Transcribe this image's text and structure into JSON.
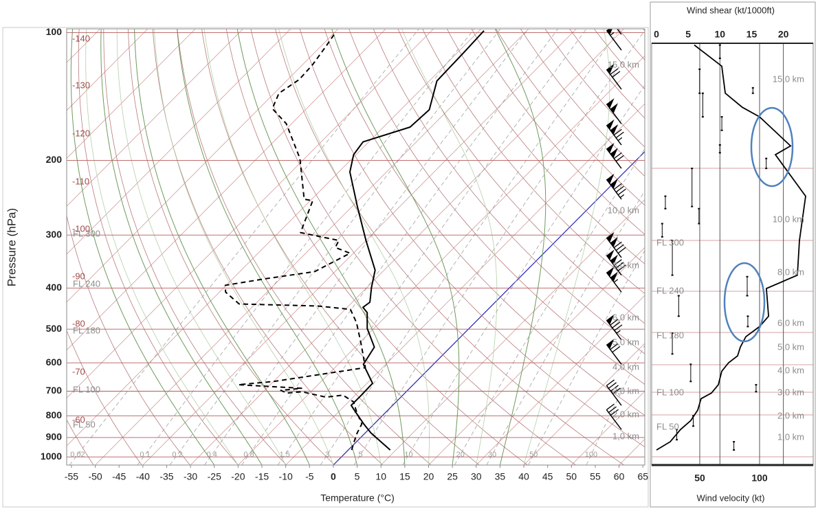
{
  "chart_data": [
    {
      "type": "skewt",
      "y_label": "Pressure (hPa)",
      "x_label": "Temperature (°C)",
      "log_y": true,
      "ylim": [
        1045,
        98
      ],
      "yticks": [
        100,
        200,
        300,
        400,
        500,
        600,
        700,
        800,
        900,
        1000
      ],
      "xlim": [
        -56,
        65.4
      ],
      "xticks": [
        -55,
        -50,
        -45,
        -40,
        -35,
        -30,
        -25,
        -20,
        -15,
        -10,
        -5,
        0,
        5,
        10,
        15,
        20,
        25,
        30,
        35,
        40,
        45,
        50,
        55,
        60,
        65
      ],
      "zero_isotherm_color": "#2424b8",
      "isotherm_labels": [
        "-140",
        "-130",
        "-120",
        "-110",
        "-100",
        "-90",
        "-80",
        "-70",
        "-60"
      ],
      "fl_labels": [
        "FL 300",
        "FL 240",
        "FL 180",
        "FL 100",
        "FL 50"
      ],
      "km_labels": [
        "15,0 km",
        "10,0 km",
        "8,0 km",
        "6,0 km",
        "5,0 km",
        "4,0 km",
        "3,0 km",
        "2,0 km",
        "1,0 km"
      ],
      "mixing_ratio_labels": [
        "0.02",
        "0.1",
        "0.2",
        "0.4",
        "0.8",
        "1.5",
        "3",
        "5",
        "10",
        "20",
        "30",
        "50",
        "100"
      ],
      "temperature": {
        "color": "#000000",
        "p": [
          963,
          878,
          836,
          785,
          756,
          715,
          671,
          605,
          551,
          498,
          457,
          444,
          432,
          398,
          363,
          309,
          257,
          213,
          194,
          181,
          167,
          152,
          130,
          111,
          99
        ],
        "values": [
          8.8,
          1.2,
          -2.2,
          -6.3,
          -8.7,
          -8.7,
          -8.8,
          -14.7,
          -16.0,
          -21.4,
          -24.7,
          -26.7,
          -26.3,
          -29.1,
          -31.9,
          -40.0,
          -48.9,
          -57.7,
          -60.5,
          -61.2,
          -54.4,
          -54.0,
          -58.4,
          -58.7,
          -59.0
        ]
      },
      "dewpoint": {
        "color": "#000000",
        "p": [
          963,
          928,
          878,
          836,
          785,
          742,
          715,
          723,
          702,
          707,
          697,
          689,
          676,
          664,
          616,
          541,
          483,
          449,
          441,
          436,
          409,
          394,
          380,
          366,
          331,
          321,
          309,
          296,
          249,
          247,
          198,
          164,
          151,
          139,
          129,
          119,
          107,
          100
        ],
        "values": [
          0.7,
          -0.3,
          -1.7,
          -2.6,
          -6.1,
          -8.9,
          -12.6,
          -15.7,
          -21.9,
          -24.8,
          -26.6,
          -22.7,
          -36.7,
          -29.9,
          -13.6,
          -19.5,
          -24.8,
          -28.9,
          -36.4,
          -53.4,
          -58.7,
          -60.2,
          -53.0,
          -44.3,
          -40.7,
          -45.0,
          -45.7,
          -55.4,
          -59.5,
          -61.6,
          -71.0,
          -81.1,
          -87.2,
          -89.0,
          -87.6,
          -87.9,
          -89.0,
          -89.8
        ]
      },
      "wind_barbs": {
        "p": [
          101,
          110,
          136,
          164,
          184,
          209,
          247,
          339,
          373,
          409,
          530,
          605,
          756,
          862
        ],
        "speed": [
          50,
          55,
          70,
          100,
          125,
          120,
          135,
          130,
          130,
          105,
          85,
          70,
          40,
          30
        ]
      }
    },
    {
      "type": "wind_profile",
      "title": "Wind shear (kt/1000ft)",
      "x_label": "Wind velocity (kt)",
      "ylim": [
        1045,
        106
      ],
      "xlim": [
        9.8,
        144.8
      ],
      "xticks": [
        50,
        100
      ],
      "x2lim": [
        -0.76,
        24.7
      ],
      "x2ticks": [
        0,
        5,
        10,
        15,
        20
      ],
      "x2gridlines": [
        10,
        20
      ],
      "fl_labels": [
        "FL 300",
        "FL 240",
        "FL 180",
        "FL 100",
        "FL 50"
      ],
      "km_labels": [
        "15,0 km",
        "10,0 km",
        "8,0 km",
        "6,0 km",
        "5,0 km",
        "4,0 km",
        "3,0 km",
        "2,0 km",
        "1,0 km"
      ],
      "velocity": {
        "color": "#000000",
        "p": [
          963,
          921,
          862,
          821,
          776,
          729,
          707,
          676,
          628,
          600,
          578,
          551,
          521,
          493,
          466,
          401,
          373,
          309,
          243,
          194,
          185,
          158,
          150,
          139,
          120,
          107
        ],
        "values": [
          13.8,
          25.3,
          33.9,
          42.5,
          48.3,
          51.1,
          59.8,
          65.5,
          68.4,
          74.1,
          81.6,
          83.9,
          88.5,
          100,
          107.5,
          105.7,
          131.6,
          133.3,
          138.5,
          113.2,
          125.9,
          100,
          85.6,
          71.3,
          68.4,
          45.4
        ]
      },
      "shear": {
        "color": "#000000",
        "values": [
          10.0,
          6.8,
          7.3,
          10.3,
          15.2,
          10.0,
          17.3,
          5.6,
          1.4,
          6.7,
          0.9,
          2.5,
          14.3,
          3.5,
          14.4,
          2.5,
          5.4,
          15.7,
          5.8,
          3.2,
          12.2
        ],
        "p_top": [
          107,
          122,
          139,
          158,
          135,
          184,
          198,
          209,
          243,
          260,
          282,
          309,
          376,
          417,
          466,
          511,
          605,
          676,
          800,
          862,
          921
        ],
        "p_bottom": [
          115,
          139,
          158,
          170,
          139,
          192,
          209,
          257,
          260,
          282,
          303,
          373,
          417,
          466,
          493,
          572,
          664,
          702,
          846,
          911,
          963
        ]
      }
    }
  ]
}
